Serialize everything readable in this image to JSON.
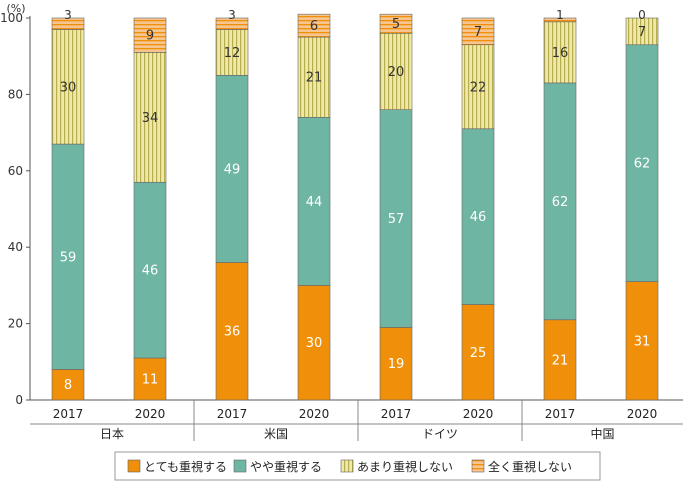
{
  "chart_data": {
    "type": "bar",
    "stacked": true,
    "unit_label": "(%)",
    "ylim": [
      0,
      100
    ],
    "yticks": [
      0,
      20,
      40,
      60,
      80,
      100
    ],
    "grid": false,
    "legend_position": "bottom",
    "groups": [
      {
        "label": "日本",
        "years": [
          "2017",
          "2020"
        ]
      },
      {
        "label": "米国",
        "years": [
          "2017",
          "2020"
        ]
      },
      {
        "label": "ドイツ",
        "years": [
          "2017",
          "2020"
        ]
      },
      {
        "label": "中国",
        "years": [
          "2017",
          "2020"
        ]
      }
    ],
    "categories": [
      "日本 2017",
      "日本 2020",
      "米国 2017",
      "米国 2020",
      "ドイツ 2017",
      "ドイツ 2020",
      "中国 2017",
      "中国 2020"
    ],
    "series": [
      {
        "name": "とても重視する",
        "color": "#f0900a",
        "pattern": "solid",
        "values": [
          8,
          11,
          36,
          30,
          19,
          25,
          21,
          31
        ]
      },
      {
        "name": "やや重視する",
        "color": "#6fb5a4",
        "pattern": "solid",
        "values": [
          59,
          46,
          49,
          44,
          57,
          46,
          62,
          62
        ]
      },
      {
        "name": "あまり重視しない",
        "color": "#eee9a8",
        "pattern": "vertical-stripes",
        "stripe_color": "#b8ae50",
        "values": [
          30,
          34,
          12,
          21,
          20,
          22,
          16,
          7
        ]
      },
      {
        "name": "全く重視しない",
        "color": "#f7c58f",
        "pattern": "horizontal-stripes",
        "stripe_color": "#f0900a",
        "values": [
          3,
          9,
          3,
          6,
          5,
          7,
          1,
          0
        ]
      }
    ]
  }
}
